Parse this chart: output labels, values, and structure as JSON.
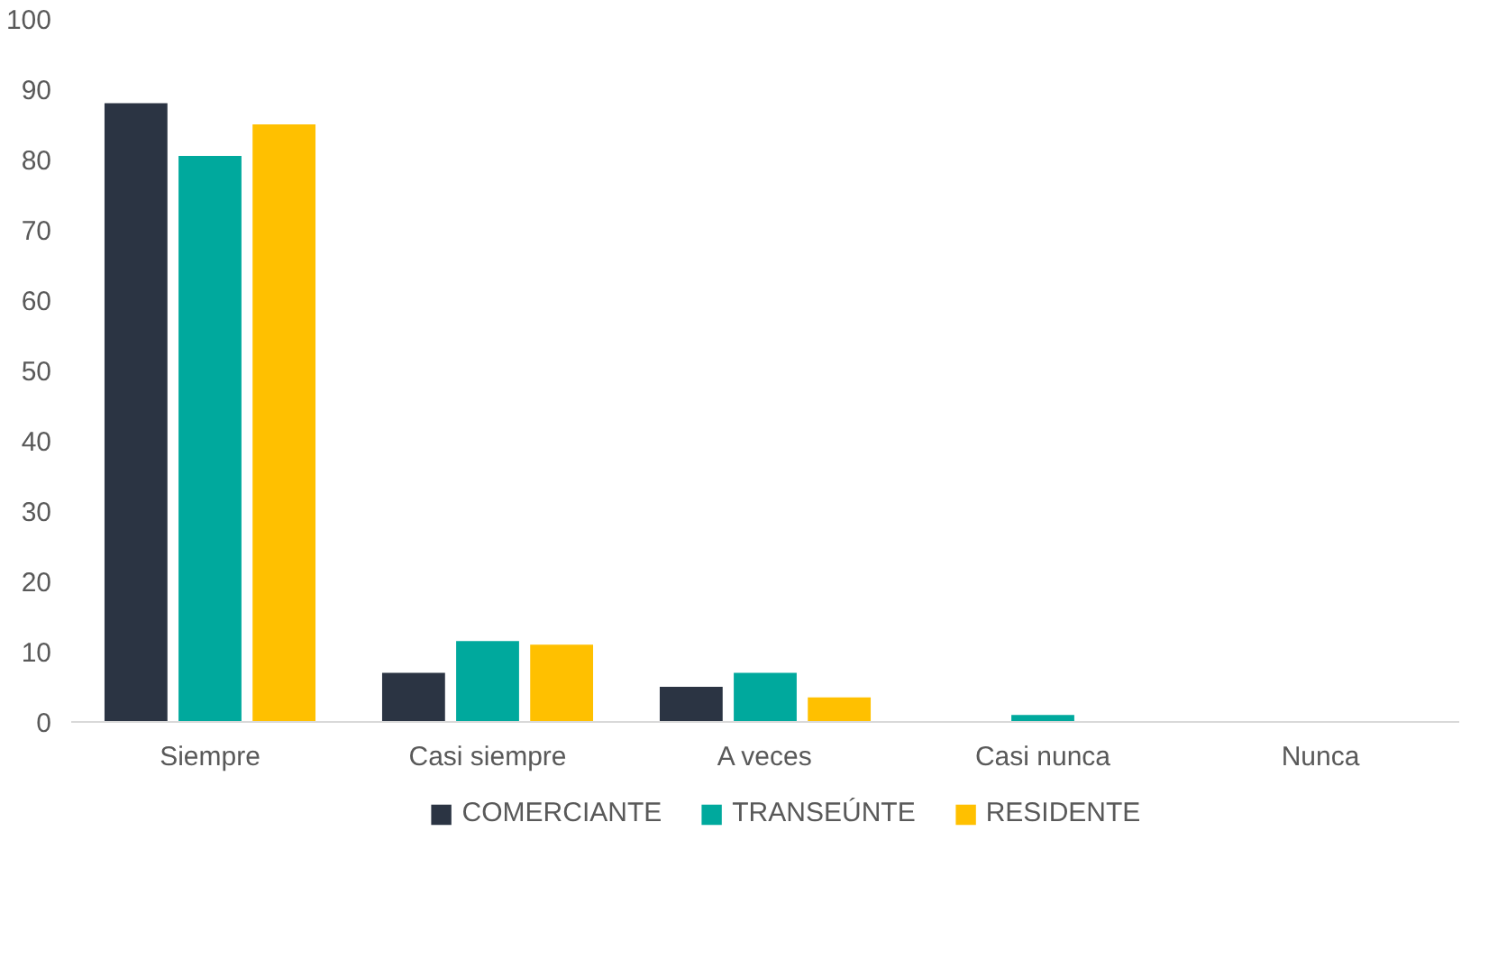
{
  "chart_data": {
    "type": "bar",
    "categories": [
      "Siempre",
      "Casi siempre",
      "A veces",
      "Casi nunca",
      "Nunca"
    ],
    "series": [
      {
        "name": "COMERCIANTE",
        "color": "#2b3443",
        "values": [
          88,
          7,
          5,
          0,
          0
        ]
      },
      {
        "name": "TRANSEÚNTE",
        "color": "#00a99d",
        "values": [
          80.5,
          11.5,
          7,
          1,
          0
        ]
      },
      {
        "name": "RESIDENTE",
        "color": "#ffc000",
        "values": [
          85,
          11,
          3.5,
          0,
          0
        ]
      }
    ],
    "ylim": [
      0,
      100
    ],
    "yticks": [
      0,
      10,
      20,
      30,
      40,
      50,
      60,
      70,
      80,
      90,
      100
    ],
    "grid": false,
    "legend": "bottom"
  }
}
